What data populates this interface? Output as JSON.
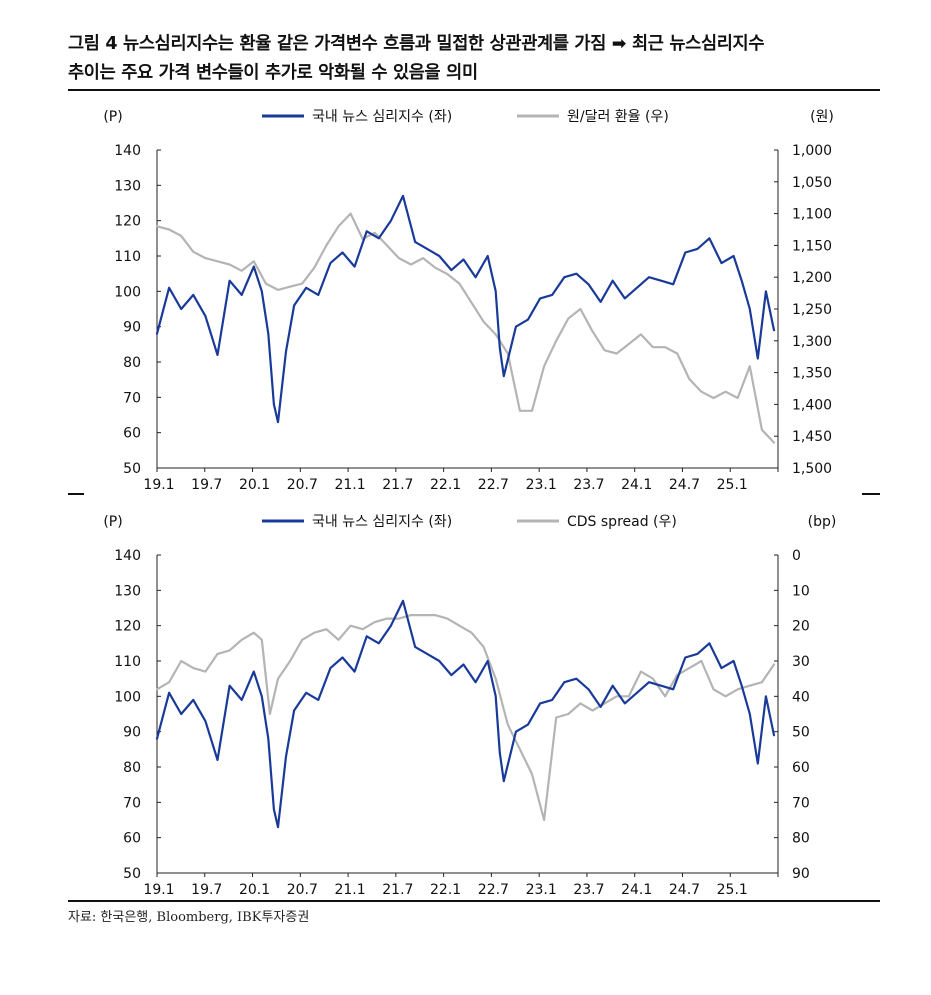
{
  "title": {
    "line1": "그림 4 뉴스심리지수는 환율 같은 가격변수 흐름과 밀접한 상관관계를 가짐 ➡ 최근 뉴스심리지수",
    "line2": "추이는 주요 가격 변수들이 추가로 악화될 수 있음을 의미"
  },
  "source": "자료: 한국은행, Bloomberg, IBK투자증권",
  "colors": {
    "nsi": "#1a3a9a",
    "secondary": "#b4b4b4"
  },
  "chart_data": [
    {
      "type": "line",
      "legend": {
        "placement": "top-center",
        "items": [
          "국내 뉴스 심리지수 (좌)",
          "원/달러 환율 (우)"
        ]
      },
      "ylabel": "(P)",
      "y2label": "(원)",
      "ylim": [
        50,
        140
      ],
      "yticks": [
        "140",
        "130",
        "120",
        "110",
        "100",
        "90",
        "80",
        "70",
        "60",
        "50"
      ],
      "y2lim": [
        1000,
        1500
      ],
      "y2_inverted": true,
      "y2ticks": [
        "1,000",
        "1,050",
        "1,100",
        "1,150",
        "1,200",
        "1,250",
        "1,300",
        "1,350",
        "1,400",
        "1,450",
        "1,500"
      ],
      "xticks": [
        "19.1",
        "19.7",
        "20.1",
        "20.7",
        "21.1",
        "21.7",
        "22.1",
        "22.7",
        "23.1",
        "23.7",
        "24.1",
        "24.7",
        "25.1"
      ],
      "xlim": [
        0,
        77
      ],
      "series": [
        {
          "name": "국내 뉴스 심리지수 (좌)",
          "axis": "left",
          "x": [
            0,
            1.5,
            3,
            4.5,
            6,
            7.5,
            9,
            10.5,
            12,
            13,
            13.8,
            14.5,
            15,
            16,
            17,
            18.5,
            20,
            21.5,
            23,
            24.5,
            26,
            27.5,
            29,
            30.5,
            32,
            33.5,
            35,
            36.5,
            38,
            39.5,
            41,
            42,
            42.5,
            43,
            44.5,
            46,
            47.5,
            49,
            50.5,
            52,
            53.5,
            55,
            56.5,
            58,
            59.5,
            61,
            62.5,
            64,
            65.5,
            67,
            68.5,
            70,
            71.5,
            72.5,
            73.5,
            74.5,
            75.5,
            76.5
          ],
          "y": [
            88,
            101,
            95,
            99,
            93,
            82,
            103,
            99,
            107,
            100,
            88,
            68,
            63,
            83,
            96,
            101,
            99,
            108,
            111,
            107,
            117,
            115,
            120,
            127,
            114,
            112,
            110,
            106,
            109,
            104,
            110,
            100,
            84,
            76,
            90,
            92,
            98,
            99,
            104,
            105,
            102,
            97,
            103,
            98,
            101,
            104,
            103,
            102,
            111,
            112,
            115,
            108,
            110,
            103,
            95,
            81,
            100,
            89
          ]
        },
        {
          "name": "원/달러 환율 (우)",
          "axis": "right",
          "x": [
            0,
            1.5,
            3,
            4.5,
            6,
            7.5,
            9,
            10.5,
            12,
            13.5,
            15,
            16.5,
            18,
            19.5,
            21,
            22.5,
            24,
            25.5,
            27,
            28.5,
            30,
            31.5,
            33,
            34.5,
            36,
            37.5,
            39,
            40.5,
            42,
            43.5,
            45,
            46.5,
            48,
            49.5,
            51,
            52.5,
            54,
            55.5,
            57,
            58.5,
            60,
            61.5,
            63,
            64.5,
            66,
            67.5,
            69,
            70.5,
            72,
            73.5,
            75,
            76.5
          ],
          "y": [
            1120,
            1125,
            1135,
            1160,
            1170,
            1175,
            1180,
            1190,
            1175,
            1210,
            1220,
            1215,
            1210,
            1185,
            1150,
            1120,
            1100,
            1140,
            1130,
            1150,
            1170,
            1180,
            1170,
            1185,
            1195,
            1210,
            1240,
            1270,
            1290,
            1320,
            1410,
            1410,
            1340,
            1300,
            1265,
            1250,
            1285,
            1315,
            1320,
            1305,
            1290,
            1310,
            1310,
            1320,
            1360,
            1380,
            1390,
            1380,
            1390,
            1340,
            1440,
            1460
          ]
        }
      ]
    },
    {
      "type": "line",
      "legend": {
        "placement": "top-center",
        "items": [
          "국내 뉴스 심리지수 (좌)",
          "CDS spread (우)"
        ]
      },
      "ylabel": "(P)",
      "y2label": "(bp)",
      "ylim": [
        50,
        140
      ],
      "yticks": [
        "140",
        "130",
        "120",
        "110",
        "100",
        "90",
        "80",
        "70",
        "60",
        "50"
      ],
      "y2lim": [
        0,
        90
      ],
      "y2_inverted": true,
      "y2ticks": [
        "0",
        "10",
        "20",
        "30",
        "40",
        "50",
        "60",
        "70",
        "80",
        "90"
      ],
      "xticks": [
        "19.1",
        "19.7",
        "20.1",
        "20.7",
        "21.1",
        "21.7",
        "22.1",
        "22.7",
        "23.1",
        "23.7",
        "24.1",
        "24.7",
        "25.1"
      ],
      "xlim": [
        0,
        77
      ],
      "series": [
        {
          "name": "국내 뉴스 심리지수 (좌)",
          "axis": "left",
          "x": [
            0,
            1.5,
            3,
            4.5,
            6,
            7.5,
            9,
            10.5,
            12,
            13,
            13.8,
            14.5,
            15,
            16,
            17,
            18.5,
            20,
            21.5,
            23,
            24.5,
            26,
            27.5,
            29,
            30.5,
            32,
            33.5,
            35,
            36.5,
            38,
            39.5,
            41,
            42,
            42.5,
            43,
            44.5,
            46,
            47.5,
            49,
            50.5,
            52,
            53.5,
            55,
            56.5,
            58,
            59.5,
            61,
            62.5,
            64,
            65.5,
            67,
            68.5,
            70,
            71.5,
            72.5,
            73.5,
            74.5,
            75.5,
            76.5
          ],
          "y": [
            88,
            101,
            95,
            99,
            93,
            82,
            103,
            99,
            107,
            100,
            88,
            68,
            63,
            83,
            96,
            101,
            99,
            108,
            111,
            107,
            117,
            115,
            120,
            127,
            114,
            112,
            110,
            106,
            109,
            104,
            110,
            100,
            84,
            76,
            90,
            92,
            98,
            99,
            104,
            105,
            102,
            97,
            103,
            98,
            101,
            104,
            103,
            102,
            111,
            112,
            115,
            108,
            110,
            103,
            95,
            81,
            100,
            89
          ]
        },
        {
          "name": "CDS spread (우)",
          "axis": "right",
          "x": [
            0,
            1.5,
            3,
            4.5,
            6,
            7.5,
            9,
            10.5,
            12,
            13,
            14,
            15,
            16.5,
            18,
            19.5,
            21,
            22.5,
            24,
            25.5,
            27,
            28.5,
            30,
            31.5,
            33,
            34.5,
            36,
            37.5,
            39,
            40.5,
            42,
            43.5,
            45,
            46.5,
            48,
            49.5,
            51,
            52.5,
            54,
            55.5,
            57,
            58.5,
            60,
            61.5,
            63,
            64.5,
            66,
            67.5,
            69,
            70.5,
            72,
            73.5,
            75,
            76.5
          ],
          "y": [
            38,
            36,
            30,
            32,
            33,
            28,
            27,
            24,
            22,
            24,
            45,
            35,
            30,
            24,
            22,
            21,
            24,
            20,
            21,
            19,
            18,
            18,
            17,
            17,
            17,
            18,
            20,
            22,
            26,
            35,
            48,
            55,
            62,
            75,
            46,
            45,
            42,
            44,
            42,
            40,
            40,
            33,
            35,
            40,
            34,
            32,
            30,
            38,
            40,
            38,
            37,
            36,
            31
          ]
        }
      ]
    }
  ]
}
